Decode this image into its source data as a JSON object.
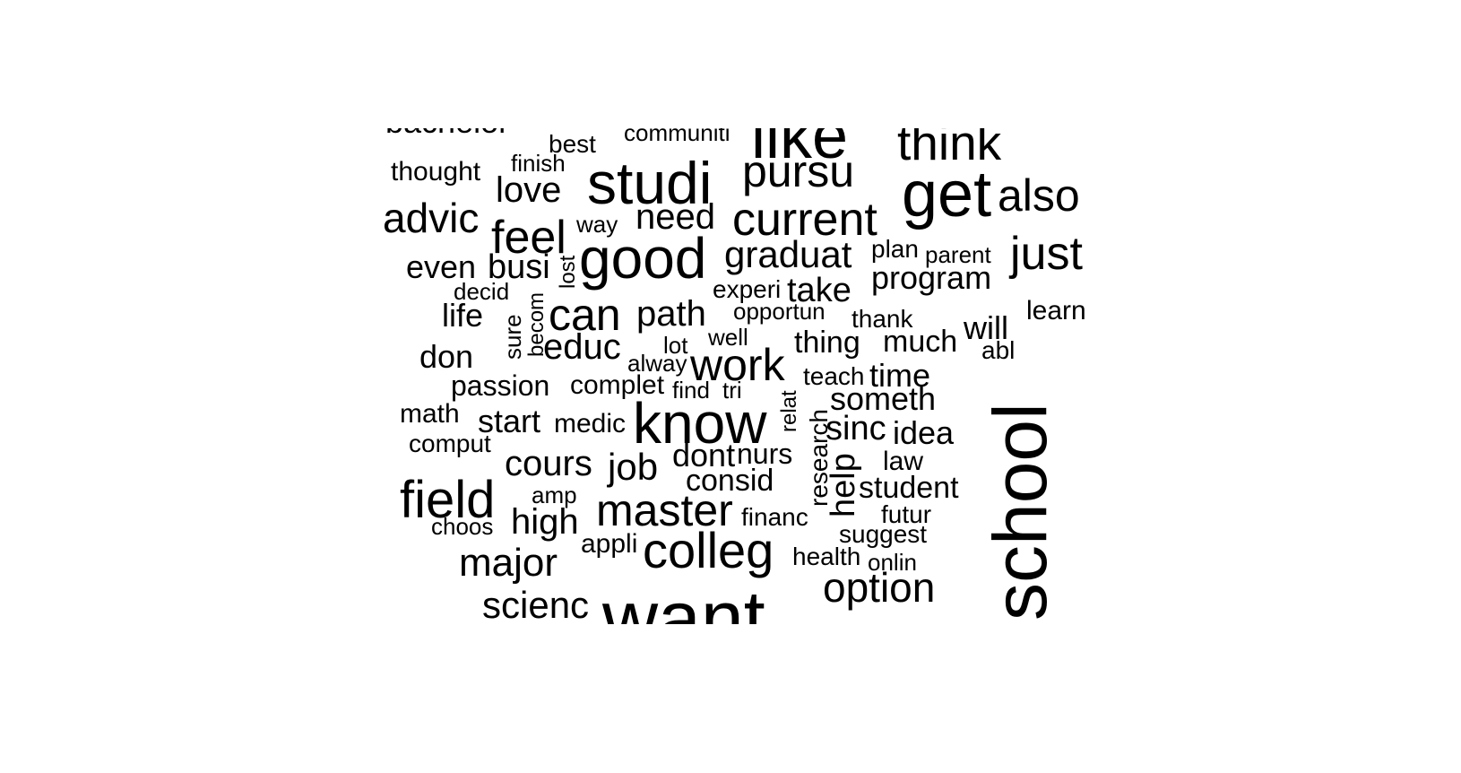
{
  "text_color": "#000000",
  "background": "#ffffff",
  "words": [
    "bachelor",
    "best",
    "communiti",
    "like",
    "think",
    "thought",
    "finish",
    "studi",
    "pursu",
    "love",
    "get",
    "also",
    "advic",
    "way",
    "need",
    "current",
    "feel",
    "good",
    "graduat",
    "plan",
    "parent",
    "just",
    "even",
    "busi",
    "lost",
    "program",
    "decid",
    "experi",
    "take",
    "becom",
    "life",
    "can",
    "path",
    "opportun",
    "thank",
    "learn",
    "sure",
    "will",
    "don",
    "educ",
    "lot",
    "well",
    "thing",
    "much",
    "abl",
    "alway",
    "work",
    "school",
    "passion",
    "complet",
    "find",
    "tri",
    "teach",
    "time",
    "relat",
    "someth",
    "math",
    "start",
    "medic",
    "know",
    "research",
    "sinc",
    "idea",
    "comput",
    "help",
    "cours",
    "job",
    "dont",
    "nurs",
    "law",
    "field",
    "consid",
    "student",
    "amp",
    "master",
    "financ",
    "futur",
    "choos",
    "high",
    "suggest",
    "appli",
    "colleg",
    "health",
    "onlin",
    "major",
    "option",
    "scienc",
    "want"
  ]
}
